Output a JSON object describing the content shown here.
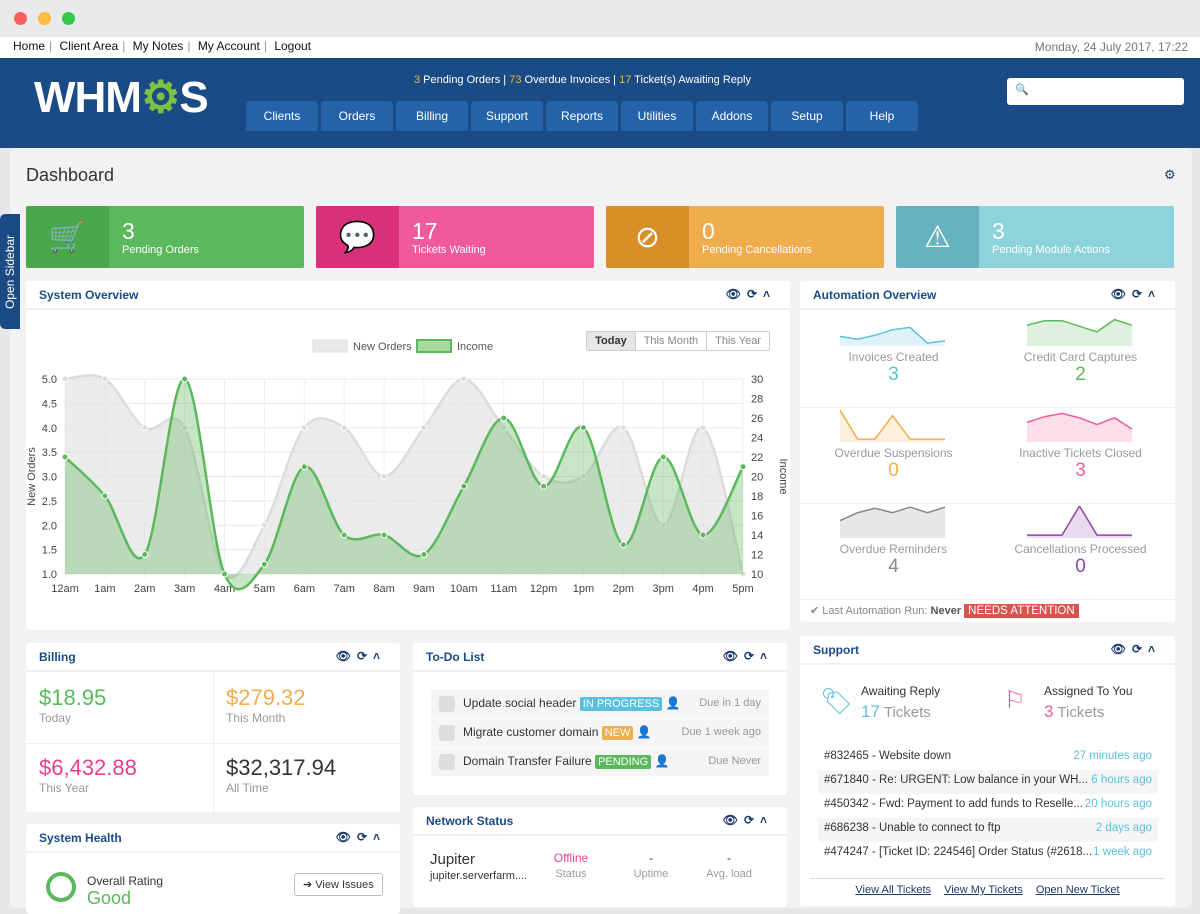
{
  "top_links": [
    "Home",
    "Client Area",
    "My Notes",
    "My Account",
    "Logout"
  ],
  "date": "Monday, 24 July 2017, 17:22",
  "logo": "WHMCS",
  "alerts": {
    "pending_orders": "3",
    "pending_orders_label": " Pending Orders | ",
    "overdue": "73",
    "overdue_label": " Overdue Invoices | ",
    "tickets": "17",
    "tickets_label": " Ticket(s) Awaiting Reply"
  },
  "nav": [
    "Clients",
    "Orders",
    "Billing",
    "Support",
    "Reports",
    "Utilities",
    "Addons",
    "Setup",
    "Help"
  ],
  "search": {
    "placeholder": "",
    "icon": "magnifier-icon"
  },
  "sidebar_tab": "Open Sidebar",
  "page_title": "Dashboard",
  "stats": [
    {
      "value": "3",
      "label": "Pending Orders",
      "icon": "cart-icon",
      "color": "#5cb85c",
      "dark": "#4aa84a"
    },
    {
      "value": "17",
      "label": "Tickets Waiting",
      "icon": "chat-icon",
      "color": "#ef5a9a",
      "dark": "#d9307a"
    },
    {
      "value": "0",
      "label": "Pending Cancellations",
      "icon": "ban-icon",
      "color": "#f0ad4e",
      "dark": "#d88e24"
    },
    {
      "value": "3",
      "label": "Pending Module Actions",
      "icon": "warning-icon",
      "color": "#8dd3dc",
      "dark": "#67b3bd"
    }
  ],
  "system_overview": {
    "title": "System Overview",
    "ranges": [
      "Today",
      "This Month",
      "This Year"
    ],
    "selected_range": "Today"
  },
  "chart_data": {
    "type": "line",
    "categories": [
      "12am",
      "1am",
      "2am",
      "3am",
      "4am",
      "5am",
      "6am",
      "7am",
      "8am",
      "9am",
      "10am",
      "11am",
      "12pm",
      "1pm",
      "2pm",
      "3pm",
      "4pm",
      "5pm"
    ],
    "series": [
      {
        "name": "New Orders",
        "axis": "left",
        "color": "#dcdcdc",
        "values": [
          5,
          5,
          4,
          4,
          1,
          2,
          4,
          4,
          3,
          4,
          5,
          4,
          3,
          3,
          4,
          2,
          4,
          1
        ]
      },
      {
        "name": "Income",
        "axis": "right",
        "color": "#5cb85c",
        "values": [
          22,
          18,
          12,
          30,
          10,
          11,
          21,
          14,
          14,
          12,
          19,
          26,
          19,
          25,
          13,
          22,
          14,
          21
        ]
      }
    ],
    "ylabel": "New Orders",
    "y2label": "Income",
    "ylim": [
      1,
      5
    ],
    "y2lim": [
      10,
      30
    ],
    "yticks": [
      "5.0",
      "4.5",
      "4.0",
      "3.5",
      "3.0",
      "2.5",
      "2.0",
      "1.5",
      "1.0"
    ],
    "y2ticks": [
      "30",
      "28",
      "26",
      "24",
      "22",
      "20",
      "18",
      "16",
      "14",
      "12",
      "10"
    ],
    "grid": true,
    "legend": "top-center",
    "smooth": true,
    "filled": true
  },
  "automation": {
    "title": "Automation Overview",
    "items": [
      {
        "label": "Invoices Created",
        "value": "3",
        "color": "#5bc0de"
      },
      {
        "label": "Credit Card Captures",
        "value": "2",
        "color": "#5cb85c"
      },
      {
        "label": "Overdue Suspensions",
        "value": "0",
        "color": "#f0ad4e"
      },
      {
        "label": "Inactive Tickets Closed",
        "value": "3",
        "color": "#ef5a9a"
      },
      {
        "label": "Overdue Reminders",
        "value": "4",
        "color": "#888888"
      },
      {
        "label": "Cancellations Processed",
        "value": "0",
        "color": "#8e44ad"
      }
    ],
    "last_run_label": "Last Automation Run:",
    "last_run": "Never",
    "attention": "NEEDS ATTENTION"
  },
  "billing": {
    "title": "Billing",
    "items": [
      {
        "value": "$18.95",
        "label": "Today",
        "color": "#5cb85c"
      },
      {
        "value": "$279.32",
        "label": "This Month",
        "color": "#f0ad4e"
      },
      {
        "value": "$6,432.88",
        "label": "This Year",
        "color": "#e83e8c"
      },
      {
        "value": "$32,317.94",
        "label": "All Time",
        "color": "#333333"
      }
    ]
  },
  "todo": {
    "title": "To-Do List",
    "items": [
      {
        "text": "Update social header",
        "badge": "IN PROGRESS",
        "badge_color": "#5bc0de",
        "due": "Due in 1 day"
      },
      {
        "text": "Migrate customer domain",
        "badge": "NEW",
        "badge_color": "#f0ad4e",
        "due": "Due 1 week ago"
      },
      {
        "text": "Domain Transfer Failure",
        "badge": "PENDING",
        "badge_color": "#5cb85c",
        "due": "Due Never"
      }
    ]
  },
  "system_health": {
    "title": "System Health",
    "overall_label": "Overall Rating",
    "overall": "Good",
    "view_issues": "View Issues"
  },
  "network": {
    "title": "Network Status",
    "server": "Jupiter",
    "host": "jupiter.serverfarm....",
    "status": "Offline",
    "status_label": "Status",
    "uptime": "-",
    "uptime_label": "Uptime",
    "load": "-",
    "load_label": "Avg. load"
  },
  "support": {
    "title": "Support",
    "awaiting_label": "Awaiting Reply",
    "awaiting": "17",
    "assigned_label": "Assigned To You",
    "assigned": "3",
    "tickets_word": "Tickets",
    "tickets": [
      {
        "subject": "#832465 - Website down",
        "time": "27 minutes ago"
      },
      {
        "subject": "#671840 - Re: URGENT: Low balance in your WH...",
        "time": "6 hours ago"
      },
      {
        "subject": "#450342 - Fwd: Payment to add funds to Reselle...",
        "time": "20 hours ago"
      },
      {
        "subject": "#686238 - Unable to connect to ftp",
        "time": "2 days ago"
      },
      {
        "subject": "#474247 - [Ticket ID: 224546] Order Status (#2618...",
        "time": "1 week ago"
      }
    ],
    "links": [
      "View All Tickets",
      "View My Tickets",
      "Open New Ticket"
    ]
  }
}
